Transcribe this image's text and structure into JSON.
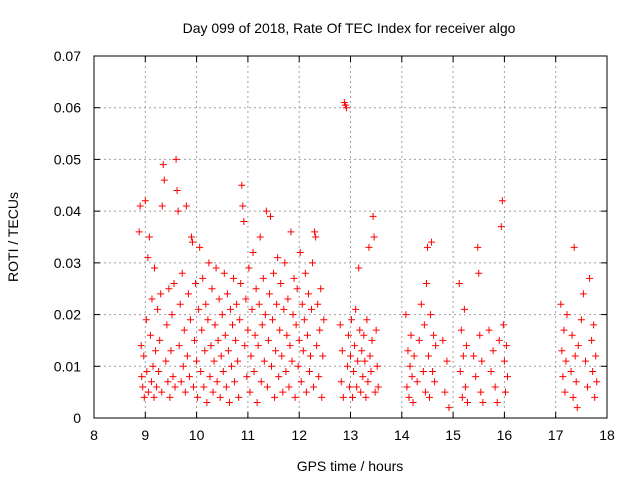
{
  "chart_data": {
    "type": "scatter",
    "title": "Day 099 of 2018, Rate Of TEC Index for receiver algo",
    "xlabel": "GPS time / hours",
    "ylabel": "ROTI / TECUs",
    "xlim": [
      8,
      18
    ],
    "ylim": [
      0,
      0.07
    ],
    "x_ticks": [
      "8",
      "9",
      "10",
      "11",
      "12",
      "13",
      "14",
      "15",
      "16",
      "17",
      "18"
    ],
    "y_ticks": [
      "0",
      "0.01",
      "0.02",
      "0.03",
      "0.04",
      "0.05",
      "0.06",
      "0.07"
    ],
    "grid": true,
    "marker": "plus",
    "series_color": "#ff0000",
    "series": [
      {
        "points": [
          [
            8.88,
            0.036
          ],
          [
            8.9,
            0.041
          ],
          [
            8.92,
            0.014
          ],
          [
            8.93,
            0.008
          ],
          [
            8.95,
            0.006
          ],
          [
            8.97,
            0.012
          ],
          [
            8.98,
            0.004
          ],
          [
            9.0,
            0.042
          ],
          [
            9.02,
            0.019
          ],
          [
            9.03,
            0.009
          ],
          [
            9.05,
            0.031
          ],
          [
            9.06,
            0.005
          ],
          [
            9.08,
            0.035
          ],
          [
            9.1,
            0.016
          ],
          [
            9.12,
            0.007
          ],
          [
            9.13,
            0.023
          ],
          [
            9.15,
            0.01
          ],
          [
            9.17,
            0.004
          ],
          [
            9.18,
            0.029
          ],
          [
            9.2,
            0.013
          ],
          [
            9.22,
            0.006
          ],
          [
            9.24,
            0.021
          ],
          [
            9.26,
            0.009
          ],
          [
            9.28,
            0.015
          ],
          [
            9.3,
            0.024
          ],
          [
            9.32,
            0.005
          ],
          [
            9.33,
            0.041
          ],
          [
            9.35,
            0.049
          ],
          [
            9.37,
            0.046
          ],
          [
            9.4,
            0.011
          ],
          [
            9.42,
            0.018
          ],
          [
            9.44,
            0.007
          ],
          [
            9.46,
            0.025
          ],
          [
            9.48,
            0.004
          ],
          [
            9.5,
            0.013
          ],
          [
            9.52,
            0.02
          ],
          [
            9.54,
            0.008
          ],
          [
            9.56,
            0.026
          ],
          [
            9.58,
            0.006
          ],
          [
            9.6,
            0.05
          ],
          [
            9.62,
            0.044
          ],
          [
            9.64,
            0.04
          ],
          [
            9.66,
            0.014
          ],
          [
            9.68,
            0.022
          ],
          [
            9.7,
            0.007
          ],
          [
            9.72,
            0.028
          ],
          [
            9.74,
            0.01
          ],
          [
            9.76,
            0.017
          ],
          [
            9.78,
            0.005
          ],
          [
            9.8,
            0.041
          ],
          [
            9.82,
            0.012
          ],
          [
            9.84,
            0.024
          ],
          [
            9.86,
            0.008
          ],
          [
            9.88,
            0.019
          ],
          [
            9.9,
            0.035
          ],
          [
            9.92,
            0.034
          ],
          [
            9.94,
            0.006
          ],
          [
            9.96,
            0.015
          ],
          [
            9.98,
            0.026
          ],
          [
            10.0,
            0.011
          ],
          [
            10.02,
            0.004
          ],
          [
            10.04,
            0.021
          ],
          [
            10.06,
            0.033
          ],
          [
            10.08,
            0.009
          ],
          [
            10.1,
            0.017
          ],
          [
            10.12,
            0.027
          ],
          [
            10.14,
            0.006
          ],
          [
            10.16,
            0.013
          ],
          [
            10.18,
            0.022
          ],
          [
            10.2,
            0.003
          ],
          [
            10.22,
            0.019
          ],
          [
            10.24,
            0.03
          ],
          [
            10.26,
            0.008
          ],
          [
            10.28,
            0.014
          ],
          [
            10.3,
            0.025
          ],
          [
            10.32,
            0.005
          ],
          [
            10.34,
            0.011
          ],
          [
            10.36,
            0.018
          ],
          [
            10.38,
            0.029
          ],
          [
            10.4,
            0.007
          ],
          [
            10.42,
            0.015
          ],
          [
            10.44,
            0.023
          ],
          [
            10.46,
            0.004
          ],
          [
            10.48,
            0.012
          ],
          [
            10.5,
            0.02
          ],
          [
            10.52,
            0.009
          ],
          [
            10.54,
            0.028
          ],
          [
            10.56,
            0.016
          ],
          [
            10.58,
            0.006
          ],
          [
            10.6,
            0.024
          ],
          [
            10.62,
            0.013
          ],
          [
            10.64,
            0.003
          ],
          [
            10.66,
            0.021
          ],
          [
            10.68,
            0.01
          ],
          [
            10.7,
            0.018
          ],
          [
            10.72,
            0.027
          ],
          [
            10.74,
            0.007
          ],
          [
            10.76,
            0.015
          ],
          [
            10.78,
            0.022
          ],
          [
            10.8,
            0.011
          ],
          [
            10.82,
            0.004
          ],
          [
            10.84,
            0.019
          ],
          [
            10.86,
            0.026
          ],
          [
            10.88,
            0.045
          ],
          [
            10.9,
            0.041
          ],
          [
            10.92,
            0.038
          ],
          [
            10.94,
            0.014
          ],
          [
            10.96,
            0.023
          ],
          [
            10.98,
            0.008
          ],
          [
            11.0,
            0.017
          ],
          [
            11.02,
            0.029
          ],
          [
            11.04,
            0.005
          ],
          [
            11.06,
            0.012
          ],
          [
            11.08,
            0.021
          ],
          [
            11.1,
            0.032
          ],
          [
            11.12,
            0.009
          ],
          [
            11.14,
            0.016
          ],
          [
            11.16,
            0.025
          ],
          [
            11.18,
            0.003
          ],
          [
            11.2,
            0.014
          ],
          [
            11.22,
            0.022
          ],
          [
            11.24,
            0.035
          ],
          [
            11.26,
            0.007
          ],
          [
            11.28,
            0.018
          ],
          [
            11.3,
            0.027
          ],
          [
            11.32,
            0.011
          ],
          [
            11.34,
            0.02
          ],
          [
            11.36,
            0.04
          ],
          [
            11.38,
            0.006
          ],
          [
            11.4,
            0.015
          ],
          [
            11.42,
            0.024
          ],
          [
            11.44,
            0.039
          ],
          [
            11.46,
            0.01
          ],
          [
            11.48,
            0.019
          ],
          [
            11.5,
            0.028
          ],
          [
            11.52,
            0.004
          ],
          [
            11.54,
            0.013
          ],
          [
            11.56,
            0.022
          ],
          [
            11.58,
            0.031
          ],
          [
            11.6,
            0.008
          ],
          [
            11.62,
            0.017
          ],
          [
            11.64,
            0.026
          ],
          [
            11.66,
            0.012
          ],
          [
            11.68,
            0.005
          ],
          [
            11.7,
            0.021
          ],
          [
            11.72,
            0.03
          ],
          [
            11.74,
            0.009
          ],
          [
            11.76,
            0.016
          ],
          [
            11.78,
            0.023
          ],
          [
            11.8,
            0.006
          ],
          [
            11.82,
            0.014
          ],
          [
            11.84,
            0.036
          ],
          [
            11.86,
            0.011
          ],
          [
            11.88,
            0.02
          ],
          [
            11.9,
            0.027
          ],
          [
            11.92,
            0.004
          ],
          [
            11.94,
            0.018
          ],
          [
            11.96,
            0.025
          ],
          [
            11.98,
            0.01
          ],
          [
            12.0,
            0.015
          ],
          [
            12.02,
            0.032
          ],
          [
            12.04,
            0.007
          ],
          [
            12.06,
            0.022
          ],
          [
            12.08,
            0.013
          ],
          [
            12.1,
            0.019
          ],
          [
            12.12,
            0.028
          ],
          [
            12.14,
            0.005
          ],
          [
            12.16,
            0.016
          ],
          [
            12.18,
            0.024
          ],
          [
            12.2,
            0.009
          ],
          [
            12.22,
            0.012
          ],
          [
            12.24,
            0.021
          ],
          [
            12.26,
            0.03
          ],
          [
            12.28,
            0.006
          ],
          [
            12.3,
            0.036
          ],
          [
            12.32,
            0.035
          ],
          [
            12.34,
            0.014
          ],
          [
            12.36,
            0.022
          ],
          [
            12.38,
            0.008
          ],
          [
            12.4,
            0.017
          ],
          [
            12.42,
            0.025
          ],
          [
            12.44,
            0.004
          ],
          [
            12.46,
            0.012
          ],
          [
            12.48,
            0.019
          ],
          [
            12.8,
            0.018
          ],
          [
            12.82,
            0.007
          ],
          [
            12.84,
            0.013
          ],
          [
            12.86,
            0.004
          ],
          [
            12.88,
            0.061
          ],
          [
            12.9,
            0.0605
          ],
          [
            12.92,
            0.06
          ],
          [
            12.94,
            0.01
          ],
          [
            12.96,
            0.016
          ],
          [
            12.98,
            0.006
          ],
          [
            13.0,
            0.012
          ],
          [
            13.02,
            0.019
          ],
          [
            13.04,
            0.004
          ],
          [
            13.06,
            0.009
          ],
          [
            13.08,
            0.014
          ],
          [
            13.1,
            0.021
          ],
          [
            13.12,
            0.006
          ],
          [
            13.14,
            0.011
          ],
          [
            13.16,
            0.029
          ],
          [
            13.18,
            0.017
          ],
          [
            13.2,
            0.005
          ],
          [
            13.22,
            0.013
          ],
          [
            13.24,
            0.008
          ],
          [
            13.26,
            0.016
          ],
          [
            13.28,
            0.011
          ],
          [
            13.3,
            0.004
          ],
          [
            13.32,
            0.019
          ],
          [
            13.34,
            0.007
          ],
          [
            13.36,
            0.033
          ],
          [
            13.38,
            0.012
          ],
          [
            13.4,
            0.009
          ],
          [
            13.42,
            0.015
          ],
          [
            13.44,
            0.039
          ],
          [
            13.46,
            0.035
          ],
          [
            13.48,
            0.005
          ],
          [
            13.5,
            0.017
          ],
          [
            13.52,
            0.01
          ],
          [
            13.54,
            0.006
          ],
          [
            14.08,
            0.02
          ],
          [
            14.1,
            0.006
          ],
          [
            14.12,
            0.013
          ],
          [
            14.14,
            0.004
          ],
          [
            14.16,
            0.01
          ],
          [
            14.18,
            0.016
          ],
          [
            14.2,
            0.008
          ],
          [
            14.22,
            0.003
          ],
          [
            14.24,
            0.012
          ],
          [
            14.3,
            0.007
          ],
          [
            14.34,
            0.015
          ],
          [
            14.38,
            0.022
          ],
          [
            14.42,
            0.009
          ],
          [
            14.44,
            0.018
          ],
          [
            14.46,
            0.005
          ],
          [
            14.48,
            0.026
          ],
          [
            14.5,
            0.033
          ],
          [
            14.52,
            0.012
          ],
          [
            14.54,
            0.004
          ],
          [
            14.56,
            0.02
          ],
          [
            14.58,
            0.034
          ],
          [
            14.6,
            0.009
          ],
          [
            14.62,
            0.016
          ],
          [
            14.64,
            0.007
          ],
          [
            14.66,
            0.014
          ],
          [
            14.8,
            0.015
          ],
          [
            14.84,
            0.005
          ],
          [
            14.88,
            0.011
          ],
          [
            14.92,
            0.002
          ],
          [
            15.12,
            0.026
          ],
          [
            15.14,
            0.009
          ],
          [
            15.16,
            0.017
          ],
          [
            15.18,
            0.004
          ],
          [
            15.2,
            0.012
          ],
          [
            15.22,
            0.021
          ],
          [
            15.24,
            0.006
          ],
          [
            15.26,
            0.014
          ],
          [
            15.28,
            0.003
          ],
          [
            15.4,
            0.012
          ],
          [
            15.44,
            0.008
          ],
          [
            15.48,
            0.033
          ],
          [
            15.5,
            0.028
          ],
          [
            15.52,
            0.016
          ],
          [
            15.54,
            0.005
          ],
          [
            15.56,
            0.011
          ],
          [
            15.58,
            0.003
          ],
          [
            15.7,
            0.017
          ],
          [
            15.74,
            0.009
          ],
          [
            15.78,
            0.013
          ],
          [
            15.82,
            0.006
          ],
          [
            15.86,
            0.003
          ],
          [
            15.9,
            0.015
          ],
          [
            15.94,
            0.037
          ],
          [
            15.96,
            0.042
          ],
          [
            15.98,
            0.018
          ],
          [
            16.0,
            0.011
          ],
          [
            16.02,
            0.005
          ],
          [
            16.04,
            0.014
          ],
          [
            16.06,
            0.008
          ],
          [
            17.1,
            0.022
          ],
          [
            17.12,
            0.013
          ],
          [
            17.14,
            0.008
          ],
          [
            17.16,
            0.017
          ],
          [
            17.18,
            0.005
          ],
          [
            17.2,
            0.011
          ],
          [
            17.22,
            0.02
          ],
          [
            17.3,
            0.009
          ],
          [
            17.32,
            0.016
          ],
          [
            17.34,
            0.004
          ],
          [
            17.36,
            0.033
          ],
          [
            17.38,
            0.012
          ],
          [
            17.4,
            0.007
          ],
          [
            17.42,
            0.002
          ],
          [
            17.44,
            0.014
          ],
          [
            17.5,
            0.019
          ],
          [
            17.54,
            0.024
          ],
          [
            17.58,
            0.011
          ],
          [
            17.62,
            0.006
          ],
          [
            17.66,
            0.027
          ],
          [
            17.7,
            0.015
          ],
          [
            17.72,
            0.009
          ],
          [
            17.74,
            0.018
          ],
          [
            17.76,
            0.004
          ],
          [
            17.78,
            0.012
          ],
          [
            17.8,
            0.007
          ]
        ]
      }
    ]
  }
}
